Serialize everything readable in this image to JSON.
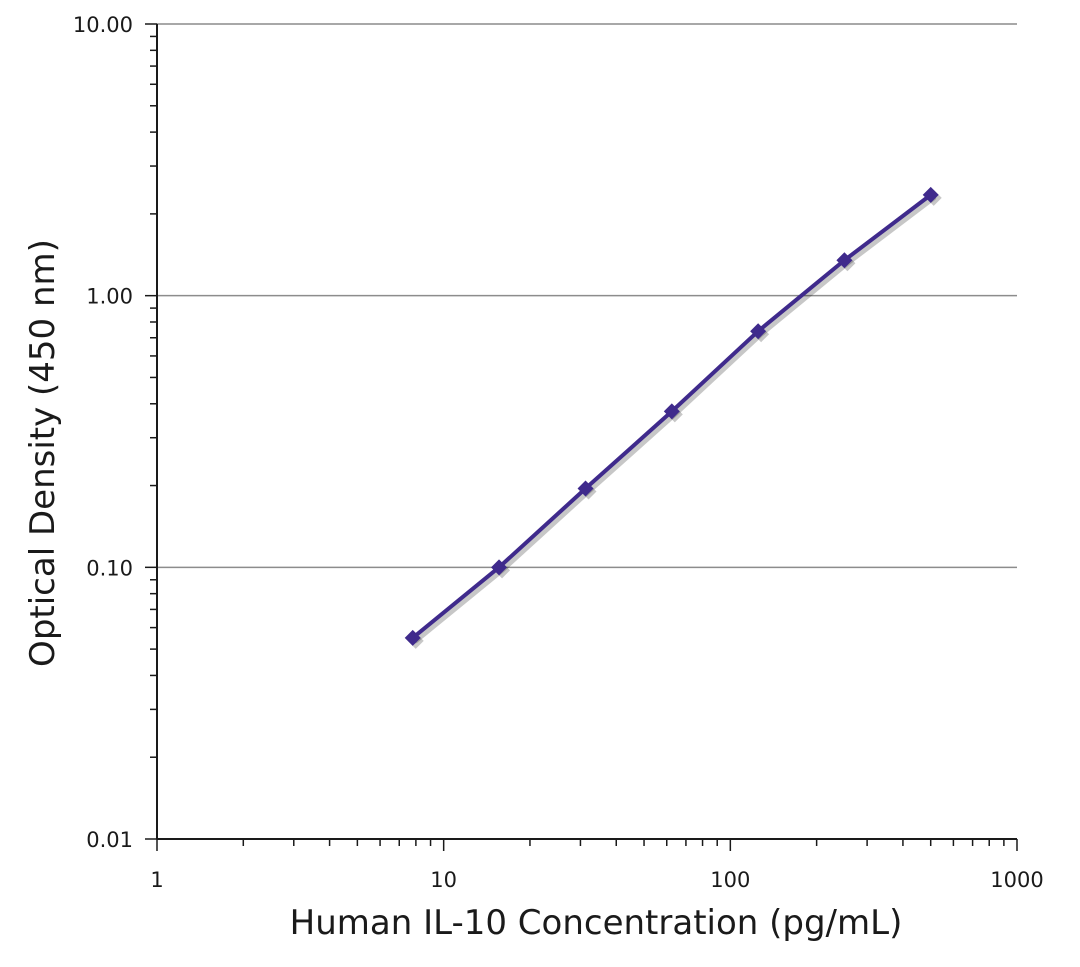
{
  "chart_data": {
    "type": "line",
    "title": "",
    "xlabel": "Human IL-10 Concentration (pg/mL)",
    "ylabel": "Optical Density (450 nm)",
    "xscale": "log",
    "yscale": "log",
    "xlim": [
      1,
      1000
    ],
    "ylim": [
      0.01,
      10
    ],
    "x_ticks": [
      {
        "value": 1,
        "label": "1"
      },
      {
        "value": 10,
        "label": "10"
      },
      {
        "value": 100,
        "label": "100"
      },
      {
        "value": 1000,
        "label": "1000"
      }
    ],
    "y_ticks": [
      {
        "value": 0.01,
        "label": "0.01"
      },
      {
        "value": 0.1,
        "label": "0.10"
      },
      {
        "value": 1,
        "label": "1.00"
      },
      {
        "value": 10,
        "label": "10.00"
      }
    ],
    "grid": {
      "y_major": true,
      "x_major": false
    },
    "series": [
      {
        "name": "Human IL-10",
        "color": "#3f2a8c",
        "marker": "diamond",
        "x": [
          7.8,
          15.6,
          31.25,
          62.5,
          125,
          250,
          500
        ],
        "y": [
          0.055,
          0.1,
          0.195,
          0.375,
          0.74,
          1.35,
          2.35
        ]
      }
    ]
  }
}
